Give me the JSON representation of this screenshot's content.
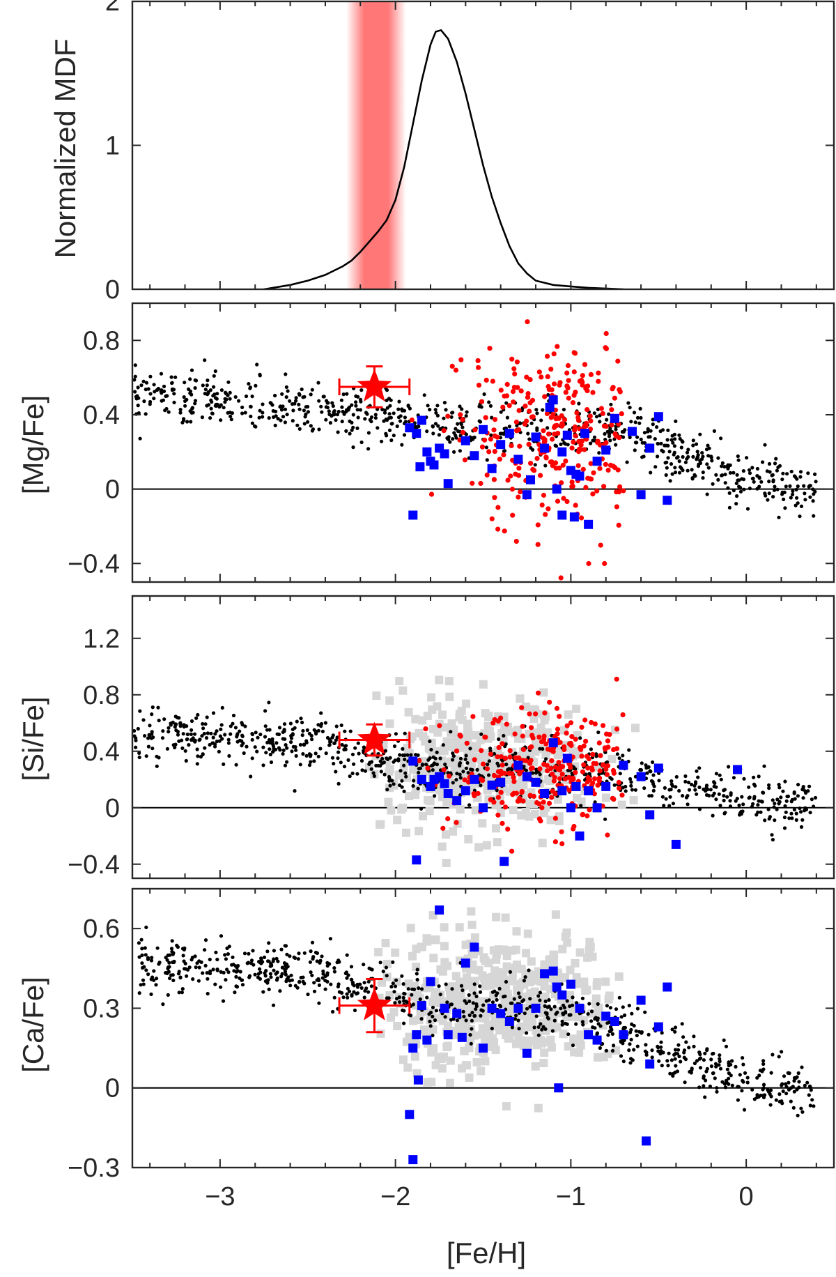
{
  "figure": {
    "shared_xlabel": "[Fe/H]",
    "colors": {
      "milky_way_dwarfs_black": "#000000",
      "red_points": "#ff0000",
      "blue_squares": "#0000ff",
      "gray_squares": "#d6d6d6",
      "highlight_band": "#ff7777",
      "target_star": "#ff0000"
    }
  },
  "chart_data": [
    {
      "type": "line",
      "title": "",
      "xlabel": "[Fe/H]",
      "ylabel": "Normalized MDF",
      "xlim": [
        -3.5,
        0.5
      ],
      "ylim": [
        0,
        2
      ],
      "xticks": [
        -3,
        -2,
        -1,
        0
      ],
      "yticks": [
        0,
        1,
        2
      ],
      "ytick_labels": [
        "0",
        "1",
        "2"
      ],
      "series": [
        {
          "name": "MDF",
          "x": [
            -2.75,
            -2.6,
            -2.5,
            -2.4,
            -2.3,
            -2.25,
            -2.2,
            -2.15,
            -2.1,
            -2.05,
            -2.0,
            -1.95,
            -1.9,
            -1.85,
            -1.8,
            -1.77,
            -1.74,
            -1.7,
            -1.65,
            -1.6,
            -1.55,
            -1.5,
            -1.45,
            -1.4,
            -1.35,
            -1.3,
            -1.25,
            -1.2,
            -1.1,
            -1.0,
            -0.9,
            -0.7
          ],
          "values": [
            0.0,
            0.03,
            0.06,
            0.1,
            0.16,
            0.2,
            0.26,
            0.33,
            0.4,
            0.48,
            0.62,
            0.85,
            1.15,
            1.45,
            1.7,
            1.79,
            1.8,
            1.74,
            1.58,
            1.36,
            1.11,
            0.86,
            0.64,
            0.46,
            0.3,
            0.18,
            0.11,
            0.06,
            0.03,
            0.02,
            0.01,
            0.0
          ]
        }
      ],
      "shaded_band": {
        "x_from": -2.28,
        "x_to": -1.94,
        "color": "#ff7777"
      }
    },
    {
      "type": "scatter",
      "title": "",
      "xlabel": "[Fe/H]",
      "ylabel": "[Mg/Fe]",
      "xlim": [
        -3.5,
        0.5
      ],
      "ylim": [
        -0.5,
        1.0
      ],
      "yticks": [
        -0.4,
        0,
        0.4,
        0.8
      ],
      "ytick_labels": [
        "−0.4",
        "0",
        "0.4",
        "0.8"
      ],
      "reference_line_y": 0,
      "series": [
        {
          "name": "black-trend",
          "marker": "dot",
          "color": "#000000",
          "trend": [
            [
              -3.5,
              0.52
            ],
            [
              -2.5,
              0.42
            ],
            [
              -1.7,
              0.34
            ],
            [
              -0.7,
              0.32
            ],
            [
              -0.4,
              0.2
            ],
            [
              0.0,
              0.05
            ],
            [
              0.4,
              0.0
            ]
          ],
          "scatter": 0.07,
          "count": 820
        },
        {
          "name": "red-points",
          "marker": "circle",
          "color": "#ff0000",
          "center_x": -1.05,
          "spread_x": 0.3,
          "center_y": 0.28,
          "spread_y": 0.26,
          "x_range": [
            -1.95,
            -0.7
          ],
          "count": 330
        },
        {
          "name": "blue-squares",
          "marker": "square",
          "color": "#0000ff",
          "x": [
            -1.92,
            -1.88,
            -1.85,
            -1.82,
            -1.8,
            -1.78,
            -1.75,
            -1.72,
            -1.9,
            -1.86,
            -1.7,
            -1.6,
            -1.55,
            -1.5,
            -1.45,
            -1.4,
            -1.35,
            -1.3,
            -1.25,
            -1.2,
            -1.15,
            -1.1,
            -1.08,
            -1.05,
            -1.02,
            -1.0,
            -0.98,
            -0.95,
            -0.92,
            -0.9,
            -0.85,
            -0.8,
            -0.75,
            -0.65,
            -0.6,
            -0.55,
            -0.5,
            -0.45,
            -1.23,
            -1.12,
            -1.05,
            -0.97
          ],
          "values": [
            0.33,
            0.3,
            0.37,
            0.2,
            0.15,
            0.13,
            0.22,
            0.19,
            -0.14,
            0.12,
            0.03,
            0.26,
            0.18,
            0.32,
            0.11,
            0.24,
            0.3,
            0.16,
            -0.03,
            0.28,
            0.22,
            0.48,
            0.0,
            -0.14,
            0.29,
            0.1,
            -0.15,
            0.07,
            0.3,
            -0.19,
            0.15,
            0.21,
            0.38,
            0.31,
            -0.03,
            0.22,
            0.39,
            -0.06,
            0.05,
            0.44,
            0.2,
            0.08
          ]
        },
        {
          "name": "target-star",
          "marker": "star",
          "color": "#ff0000",
          "x": [
            -2.12
          ],
          "values": [
            0.55
          ],
          "xerr": 0.2,
          "yerr": 0.11
        }
      ]
    },
    {
      "type": "scatter",
      "title": "",
      "xlabel": "[Fe/H]",
      "ylabel": "[Si/Fe]",
      "xlim": [
        -3.5,
        0.5
      ],
      "ylim": [
        -0.5,
        1.5
      ],
      "yticks": [
        -0.4,
        0,
        0.4,
        0.8,
        1.2
      ],
      "ytick_labels": [
        "−0.4",
        "0",
        "0.4",
        "0.8",
        "1.2"
      ],
      "reference_line_y": 0,
      "series": [
        {
          "name": "gray-squares",
          "marker": "square",
          "color": "#d6d6d6",
          "center_x": -1.55,
          "spread_x": 0.35,
          "center_y": 0.3,
          "spread_y": 0.22,
          "x_range": [
            -2.15,
            -0.55
          ],
          "count": 420
        },
        {
          "name": "black-trend",
          "marker": "dot",
          "color": "#000000",
          "trend": [
            [
              -3.5,
              0.55
            ],
            [
              -2.5,
              0.45
            ],
            [
              -1.8,
              0.28
            ],
            [
              -0.8,
              0.25
            ],
            [
              -0.3,
              0.15
            ],
            [
              0.0,
              0.05
            ],
            [
              0.4,
              0.02
            ]
          ],
          "scatter": 0.1,
          "count": 800
        },
        {
          "name": "red-points",
          "marker": "circle",
          "color": "#ff0000",
          "center_x": -1.1,
          "spread_x": 0.3,
          "center_y": 0.25,
          "spread_y": 0.2,
          "x_range": [
            -1.95,
            -0.7
          ],
          "count": 300
        },
        {
          "name": "blue-squares",
          "marker": "square",
          "color": "#0000ff",
          "x": [
            -1.9,
            -1.85,
            -1.8,
            -1.78,
            -1.75,
            -1.72,
            -1.7,
            -1.65,
            -1.6,
            -1.55,
            -1.5,
            -1.45,
            -1.4,
            -1.38,
            -1.3,
            -1.25,
            -1.2,
            -1.15,
            -1.1,
            -1.05,
            -1.02,
            -1.0,
            -0.97,
            -0.95,
            -0.9,
            -0.85,
            -0.8,
            -0.7,
            -0.6,
            -0.55,
            -0.5,
            -0.4,
            -0.05,
            -1.88
          ],
          "values": [
            0.33,
            0.2,
            0.15,
            0.2,
            0.22,
            0.17,
            0.1,
            0.05,
            0.12,
            0.2,
            0.0,
            0.16,
            0.18,
            -0.38,
            0.3,
            0.22,
            0.18,
            0.1,
            0.46,
            0.12,
            0.35,
            0.0,
            0.15,
            -0.2,
            0.12,
            0.0,
            0.15,
            0.3,
            0.22,
            -0.05,
            0.28,
            -0.26,
            0.27,
            -0.37
          ]
        },
        {
          "name": "target-star",
          "marker": "star",
          "color": "#ff0000",
          "x": [
            -2.12
          ],
          "values": [
            0.48
          ],
          "xerr": 0.2,
          "yerr": 0.11
        }
      ]
    },
    {
      "type": "scatter",
      "title": "",
      "xlabel": "[Fe/H]",
      "ylabel": "[Ca/Fe]",
      "xlim": [
        -3.5,
        0.5
      ],
      "ylim": [
        -0.3,
        0.75
      ],
      "xticks": [
        -3,
        -2,
        -1,
        0
      ],
      "xtick_labels": [
        "−3",
        "−2",
        "−1",
        "0"
      ],
      "yticks": [
        -0.3,
        0,
        0.3,
        0.6
      ],
      "ytick_labels": [
        "−0.3",
        "0",
        "0.3",
        "0.6"
      ],
      "reference_line_y": 0,
      "series": [
        {
          "name": "gray-squares",
          "marker": "square",
          "color": "#d6d6d6",
          "center_x": -1.4,
          "spread_x": 0.35,
          "center_y": 0.33,
          "spread_y": 0.13,
          "x_range": [
            -2.1,
            -0.7
          ],
          "count": 480
        },
        {
          "name": "black-trend",
          "marker": "dot",
          "color": "#000000",
          "trend": [
            [
              -3.5,
              0.47
            ],
            [
              -2.5,
              0.45
            ],
            [
              -1.8,
              0.32
            ],
            [
              -1.0,
              0.28
            ],
            [
              -0.6,
              0.18
            ],
            [
              -0.3,
              0.08
            ],
            [
              0.0,
              0.03
            ],
            [
              0.4,
              -0.03
            ]
          ],
          "scatter": 0.05,
          "count": 820
        },
        {
          "name": "blue-squares",
          "marker": "square",
          "color": "#0000ff",
          "x": [
            -1.9,
            -1.88,
            -1.85,
            -1.82,
            -1.8,
            -1.75,
            -1.72,
            -1.7,
            -1.65,
            -1.6,
            -1.55,
            -1.5,
            -1.45,
            -1.4,
            -1.35,
            -1.3,
            -1.25,
            -1.2,
            -1.15,
            -1.1,
            -1.08,
            -1.05,
            -1.0,
            -0.95,
            -0.9,
            -0.85,
            -0.8,
            -0.75,
            -0.7,
            -0.6,
            -0.55,
            -0.5,
            -0.45,
            -1.92,
            -1.9,
            -1.87,
            -1.62,
            -1.07,
            -0.57
          ],
          "values": [
            0.15,
            0.2,
            0.31,
            0.18,
            0.4,
            0.67,
            0.3,
            0.2,
            0.28,
            0.47,
            0.53,
            0.15,
            0.3,
            0.28,
            0.25,
            0.3,
            0.13,
            0.3,
            0.43,
            0.44,
            0.38,
            0.35,
            0.39,
            0.3,
            0.2,
            0.18,
            0.27,
            0.25,
            0.2,
            0.33,
            0.09,
            0.23,
            0.38,
            -0.1,
            -0.27,
            0.03,
            0.19,
            0.0,
            -0.2
          ]
        },
        {
          "name": "target-star",
          "marker": "star",
          "color": "#ff0000",
          "x": [
            -2.12
          ],
          "values": [
            0.31
          ],
          "xerr": 0.2,
          "yerr": 0.1
        }
      ]
    }
  ]
}
